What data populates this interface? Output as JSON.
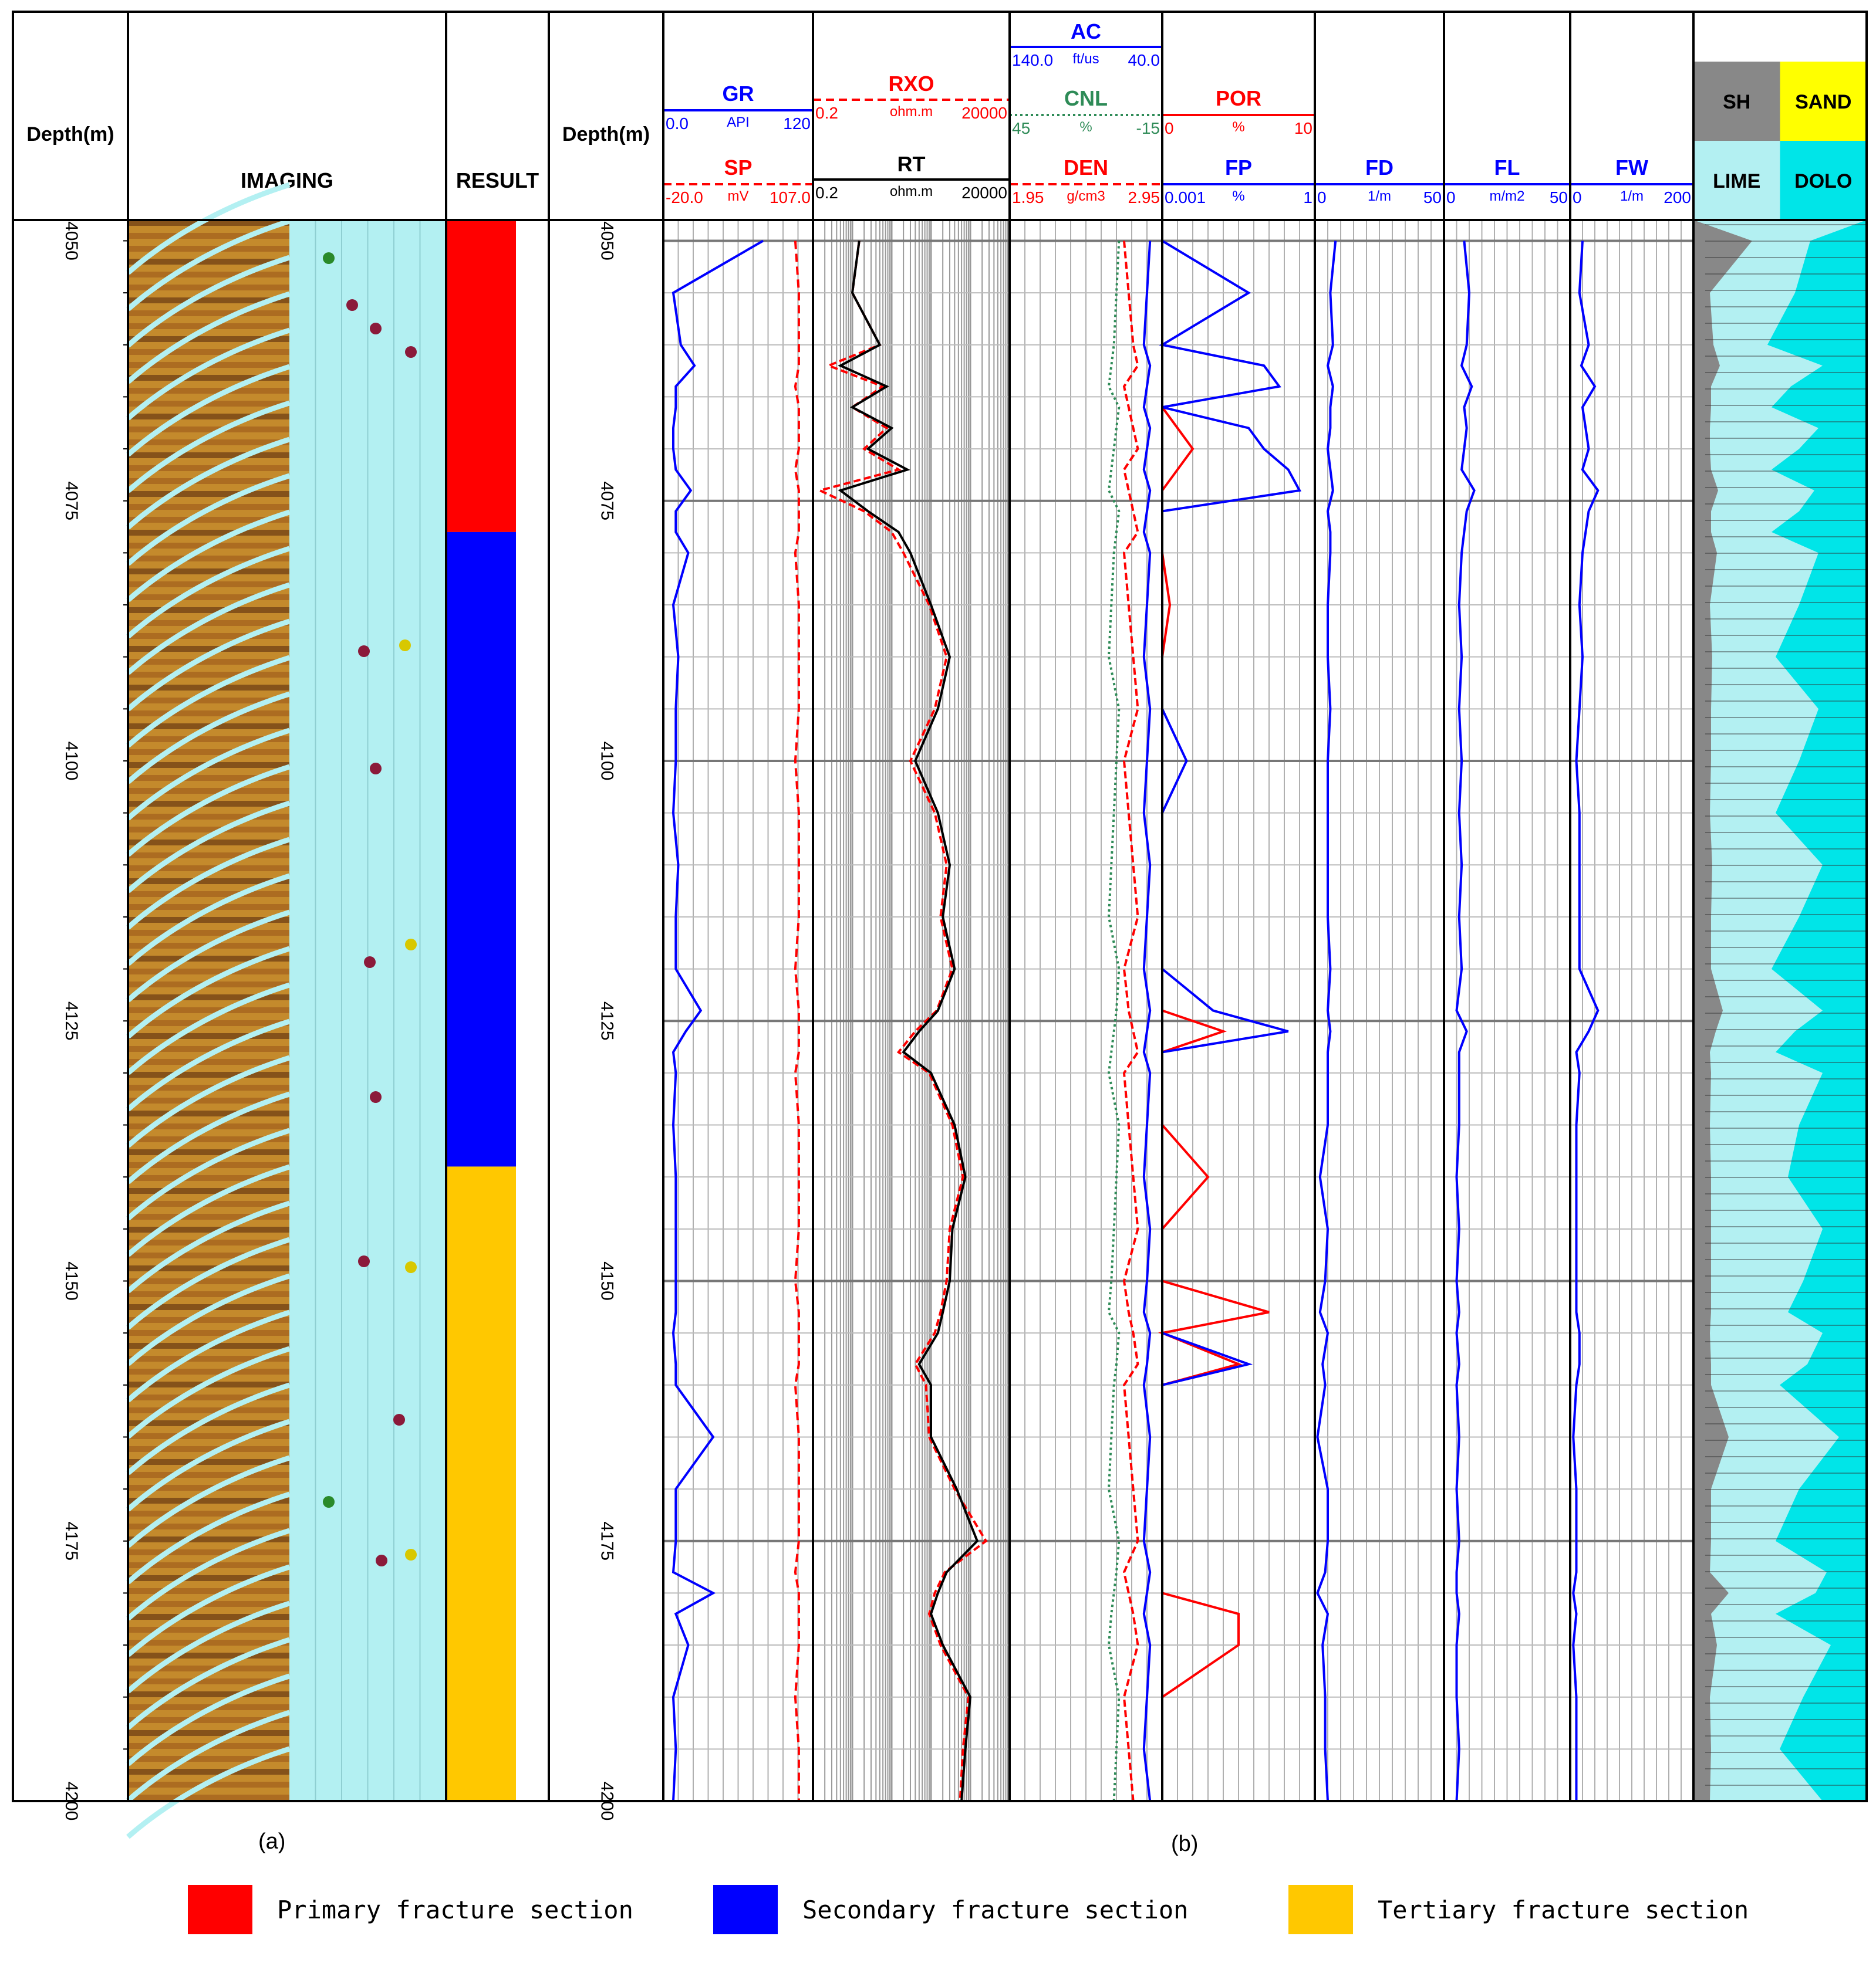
{
  "chart_data": {
    "type": "line",
    "subtype": "well-log composite",
    "depth_axis": {
      "label": "Depth(m)",
      "ticks": [
        4050,
        4075,
        4100,
        4125,
        4150,
        4175,
        4200
      ],
      "range": [
        4048,
        4200
      ]
    },
    "imaging": {
      "label": "IMAGING"
    },
    "result": {
      "label": "RESULT",
      "sections": [
        {
          "from": 4048,
          "to": 4078,
          "class": "primary",
          "color": "#ff0000"
        },
        {
          "from": 4078,
          "to": 4139,
          "class": "secondary",
          "color": "#0000ff"
        },
        {
          "from": 4139,
          "to": 4200,
          "class": "tertiary",
          "color": "#ffc800"
        }
      ]
    },
    "tracks": [
      {
        "id": "gr_sp",
        "headers": [
          {
            "name": "GR",
            "color": "#0000ff",
            "min": "0.0",
            "unit": "API",
            "max": "120",
            "dash": "solid"
          },
          {
            "name": "SP",
            "color": "#ff0000",
            "min": "-20.0",
            "unit": "mV",
            "max": "107.0",
            "dash": "dash"
          }
        ]
      },
      {
        "id": "rxo_rt",
        "headers": [
          {
            "name": "RXO",
            "color": "#ff0000",
            "min": "0.2",
            "unit": "ohm.m",
            "max": "20000",
            "dash": "dash"
          },
          {
            "name": "RT",
            "color": "#000000",
            "min": "0.2",
            "unit": "ohm.m",
            "max": "20000",
            "dash": "solid"
          }
        ],
        "scale": "log"
      },
      {
        "id": "ac_cnl_den",
        "headers": [
          {
            "name": "AC",
            "color": "#0000ff",
            "min": "140.0",
            "unit": "ft/us",
            "max": "40.0",
            "dash": "solid"
          },
          {
            "name": "CNL",
            "color": "#2e8b57",
            "min": "45",
            "unit": "%",
            "max": "-15",
            "dash": "dot"
          },
          {
            "name": "DEN",
            "color": "#ff0000",
            "min": "1.95",
            "unit": "g/cm3",
            "max": "2.95",
            "dash": "dash"
          }
        ]
      },
      {
        "id": "por_fp",
        "headers": [
          {
            "name": "POR",
            "color": "#ff0000",
            "min": "0",
            "unit": "%",
            "max": "10",
            "dash": "solid"
          },
          {
            "name": "FP",
            "color": "#0000ff",
            "min": "0.001",
            "unit": "%",
            "max": "1",
            "dash": "solid"
          }
        ]
      },
      {
        "id": "fd",
        "headers": [
          {
            "name": "FD",
            "color": "#0000ff",
            "min": "0",
            "unit": "1/m",
            "max": "50",
            "dash": "solid"
          }
        ]
      },
      {
        "id": "fl",
        "headers": [
          {
            "name": "FL",
            "color": "#0000ff",
            "min": "0",
            "unit": "m/m2",
            "max": "50",
            "dash": "solid"
          }
        ]
      },
      {
        "id": "fw",
        "headers": [
          {
            "name": "FW",
            "color": "#0000ff",
            "min": "0",
            "unit": "1/m",
            "max": "200",
            "dash": "solid"
          }
        ]
      }
    ],
    "lithology": {
      "labels": [
        "SH",
        "SAND",
        "LIME",
        "DOLO"
      ],
      "colors": {
        "SH": "#888888",
        "SAND": "#ffff00",
        "LIME": "#b3f0f2",
        "DOLO": "#00e5e8"
      }
    },
    "curves_approx": {
      "depths": [
        4050,
        4055,
        4060,
        4062,
        4064,
        4066,
        4068,
        4070,
        4072,
        4074,
        4076,
        4078,
        4080,
        4085,
        4090,
        4095,
        4100,
        4105,
        4110,
        4115,
        4120,
        4124,
        4126,
        4128,
        4130,
        4135,
        4140,
        4145,
        4150,
        4153,
        4155,
        4158,
        4160,
        4165,
        4170,
        4175,
        4178,
        4180,
        4182,
        4185,
        4190,
        4195,
        4200
      ],
      "GR": [
        80,
        8,
        14,
        25,
        10,
        10,
        8,
        8,
        10,
        22,
        10,
        10,
        20,
        8,
        12,
        10,
        10,
        8,
        12,
        10,
        10,
        30,
        18,
        8,
        10,
        8,
        10,
        10,
        10,
        10,
        8,
        10,
        10,
        40,
        10,
        10,
        8,
        40,
        10,
        20,
        8,
        10,
        8
      ],
      "RT": [
        3,
        2,
        10,
        1,
        15,
        2,
        20,
        5,
        50,
        1,
        5,
        30,
        60,
        200,
        600,
        300,
        80,
        300,
        600,
        400,
        800,
        300,
        100,
        40,
        200,
        800,
        1500,
        700,
        600,
        400,
        300,
        100,
        200,
        200,
        900,
        3000,
        500,
        300,
        200,
        400,
        2000,
        1500,
        1200
      ],
      "RXO": [
        3,
        2,
        10,
        0.5,
        12,
        2,
        15,
        4,
        30,
        0.3,
        4,
        20,
        40,
        180,
        500,
        250,
        60,
        250,
        500,
        350,
        700,
        280,
        80,
        30,
        180,
        700,
        1300,
        600,
        500,
        350,
        250,
        80,
        150,
        180,
        800,
        5000,
        450,
        250,
        180,
        350,
        1800,
        1300,
        1100
      ],
      "FP": [
        0.001,
        0.05,
        0.001,
        0.1,
        0.2,
        0.001,
        0.05,
        0.1,
        0.3,
        0.5,
        0.001,
        0.001,
        0.001,
        0.001,
        0.001,
        0.001,
        0.003,
        0.001,
        0.001,
        0.001,
        0.001,
        0.01,
        0.3,
        0.001,
        0.001,
        0.001,
        0.001,
        0.001,
        0.001,
        0.001,
        0.001,
        0.05,
        0.001,
        0.001,
        0.001,
        0.001,
        0.001,
        0.001,
        0.001,
        0.001,
        0.001,
        0.001,
        0.001
      ],
      "POR": [
        0,
        0,
        0,
        0,
        0,
        0,
        1,
        2,
        1,
        0,
        0,
        0,
        0,
        0.5,
        0,
        0,
        0,
        0,
        0,
        0,
        0,
        0,
        4,
        0,
        0,
        0,
        3,
        0,
        0,
        7,
        0,
        5,
        0,
        0,
        0,
        0,
        0,
        0,
        5,
        5,
        0,
        0,
        0
      ],
      "FD": [
        8,
        6,
        7,
        5,
        7,
        6,
        6,
        5,
        6,
        7,
        5,
        6,
        6,
        5,
        5,
        6,
        5,
        5,
        5,
        5,
        6,
        5,
        6,
        5,
        5,
        5,
        2,
        5,
        4,
        2,
        5,
        3,
        4,
        1,
        5,
        5,
        4,
        1,
        5,
        3,
        4,
        4,
        5
      ],
      "FL": [
        8,
        10,
        9,
        7,
        11,
        8,
        9,
        8,
        7,
        12,
        9,
        8,
        7,
        6,
        7,
        6,
        7,
        6,
        7,
        6,
        7,
        5,
        9,
        6,
        6,
        6,
        5,
        6,
        5,
        6,
        5,
        6,
        5,
        6,
        5,
        6,
        5,
        5,
        6,
        5,
        5,
        6,
        5
      ],
      "FW": [
        20,
        15,
        30,
        18,
        40,
        20,
        25,
        30,
        20,
        45,
        30,
        25,
        20,
        15,
        20,
        15,
        10,
        15,
        15,
        15,
        15,
        45,
        30,
        10,
        15,
        10,
        10,
        10,
        10,
        10,
        15,
        15,
        10,
        5,
        10,
        10,
        10,
        5,
        10,
        5,
        10,
        10,
        10
      ]
    }
  },
  "captions": {
    "a": "(a)",
    "b": "(b)"
  },
  "legend": {
    "items": [
      {
        "label": "Primary fracture section",
        "color": "#ff0000"
      },
      {
        "label": "Secondary fracture section",
        "color": "#0000ff"
      },
      {
        "label": "Tertiary fracture section",
        "color": "#ffc800"
      }
    ]
  }
}
